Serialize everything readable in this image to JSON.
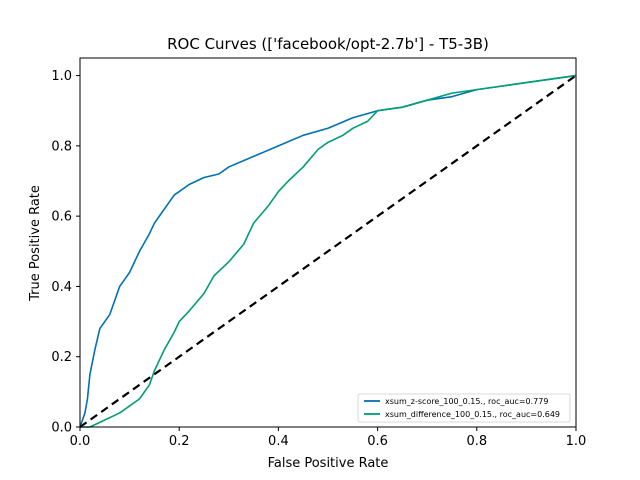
{
  "chart_data": {
    "type": "line",
    "title": "ROC Curves (['facebook/opt-2.7b'] - T5-3B)",
    "xlabel": "False Positive Rate",
    "ylabel": "True Positive Rate",
    "xlim": [
      0.0,
      1.0
    ],
    "ylim": [
      0.0,
      1.05
    ],
    "xticks": [
      "0.0",
      "0.2",
      "0.4",
      "0.6",
      "0.8",
      "1.0"
    ],
    "yticks": [
      "0.0",
      "0.2",
      "0.4",
      "0.6",
      "0.8",
      "1.0"
    ],
    "grid": false,
    "legend_position": "lower-right",
    "series": [
      {
        "name": "xsum_z-score_100_0.15., roc_auc=0.779",
        "color": "#0072b2",
        "x": [
          0.0,
          0.005,
          0.01,
          0.015,
          0.02,
          0.03,
          0.04,
          0.05,
          0.06,
          0.07,
          0.08,
          0.09,
          0.1,
          0.12,
          0.14,
          0.15,
          0.16,
          0.18,
          0.19,
          0.2,
          0.22,
          0.25,
          0.28,
          0.3,
          0.35,
          0.4,
          0.45,
          0.5,
          0.55,
          0.6,
          0.65,
          0.7,
          0.75,
          0.8,
          0.85,
          0.9,
          0.95,
          1.0
        ],
        "y": [
          0.0,
          0.02,
          0.04,
          0.08,
          0.15,
          0.22,
          0.28,
          0.3,
          0.32,
          0.36,
          0.4,
          0.42,
          0.44,
          0.5,
          0.55,
          0.58,
          0.6,
          0.64,
          0.66,
          0.67,
          0.69,
          0.71,
          0.72,
          0.74,
          0.77,
          0.8,
          0.83,
          0.85,
          0.88,
          0.9,
          0.91,
          0.93,
          0.94,
          0.96,
          0.97,
          0.98,
          0.99,
          1.0
        ]
      },
      {
        "name": "xsum_difference_100_0.15., roc_auc=0.649",
        "color": "#009e73",
        "x": [
          0.0,
          0.02,
          0.05,
          0.08,
          0.1,
          0.12,
          0.14,
          0.15,
          0.17,
          0.19,
          0.2,
          0.22,
          0.25,
          0.27,
          0.3,
          0.33,
          0.35,
          0.38,
          0.4,
          0.42,
          0.45,
          0.48,
          0.5,
          0.53,
          0.55,
          0.58,
          0.6,
          0.65,
          0.7,
          0.75,
          0.8,
          0.85,
          0.9,
          0.95,
          1.0
        ],
        "y": [
          0.0,
          0.0,
          0.02,
          0.04,
          0.06,
          0.08,
          0.12,
          0.16,
          0.22,
          0.27,
          0.3,
          0.33,
          0.38,
          0.43,
          0.47,
          0.52,
          0.58,
          0.63,
          0.67,
          0.7,
          0.74,
          0.79,
          0.81,
          0.83,
          0.85,
          0.87,
          0.9,
          0.91,
          0.93,
          0.95,
          0.96,
          0.97,
          0.98,
          0.99,
          1.0
        ]
      },
      {
        "name": "",
        "color": "#000000",
        "dashed": true,
        "x": [
          0.0,
          1.0
        ],
        "y": [
          0.0,
          1.0
        ]
      }
    ]
  }
}
